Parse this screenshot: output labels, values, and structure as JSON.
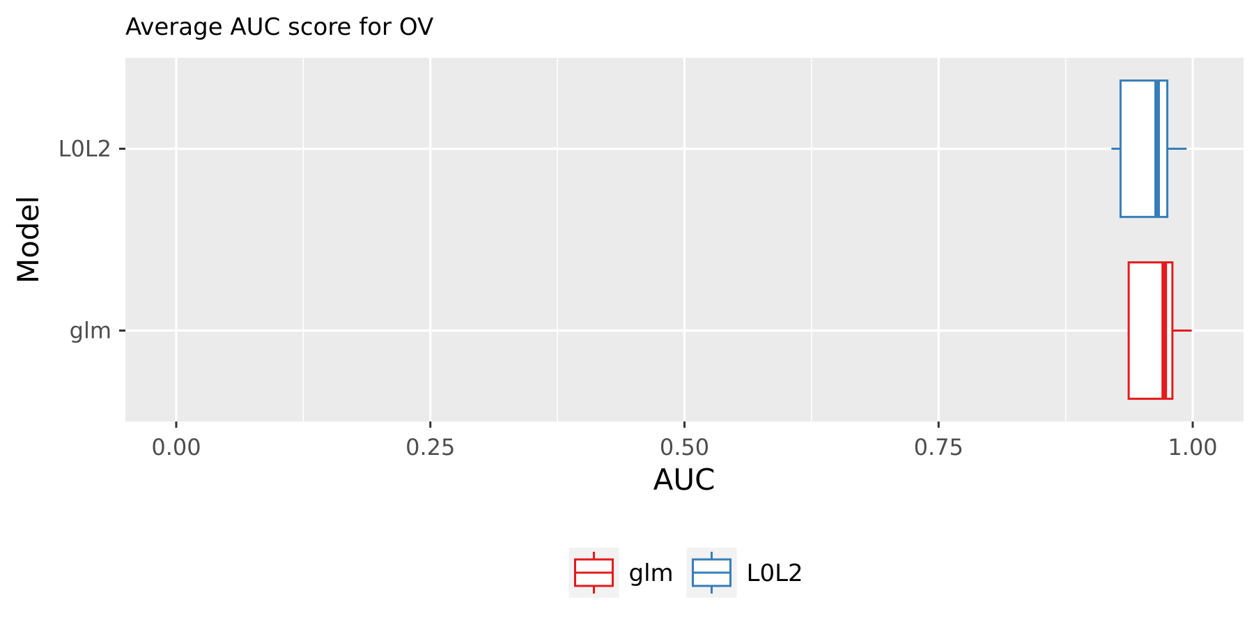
{
  "chart_data": {
    "type": "boxplot",
    "orientation": "horizontal",
    "title": "Average AUC score for OV",
    "xlabel": "AUC",
    "ylabel": "Model",
    "xlim": [
      -0.05,
      1.05
    ],
    "x_ticks": [
      0.0,
      0.25,
      0.5,
      0.75,
      1.0
    ],
    "x_tick_labels": [
      "0.00",
      "0.25",
      "0.50",
      "0.75",
      "1.00"
    ],
    "categories": [
      "glm",
      "L0L2"
    ],
    "grid": true,
    "legend_position": "bottom",
    "series": [
      {
        "name": "glm",
        "color": "#e41a1c",
        "whisker_low": 0.937,
        "q1": 0.937,
        "median": 0.972,
        "q3": 0.98,
        "whisker_high": 0.999
      },
      {
        "name": "L0L2",
        "color": "#377eb8",
        "whisker_low": 0.92,
        "q1": 0.929,
        "median": 0.965,
        "q3": 0.975,
        "whisker_high": 0.994
      }
    ]
  }
}
